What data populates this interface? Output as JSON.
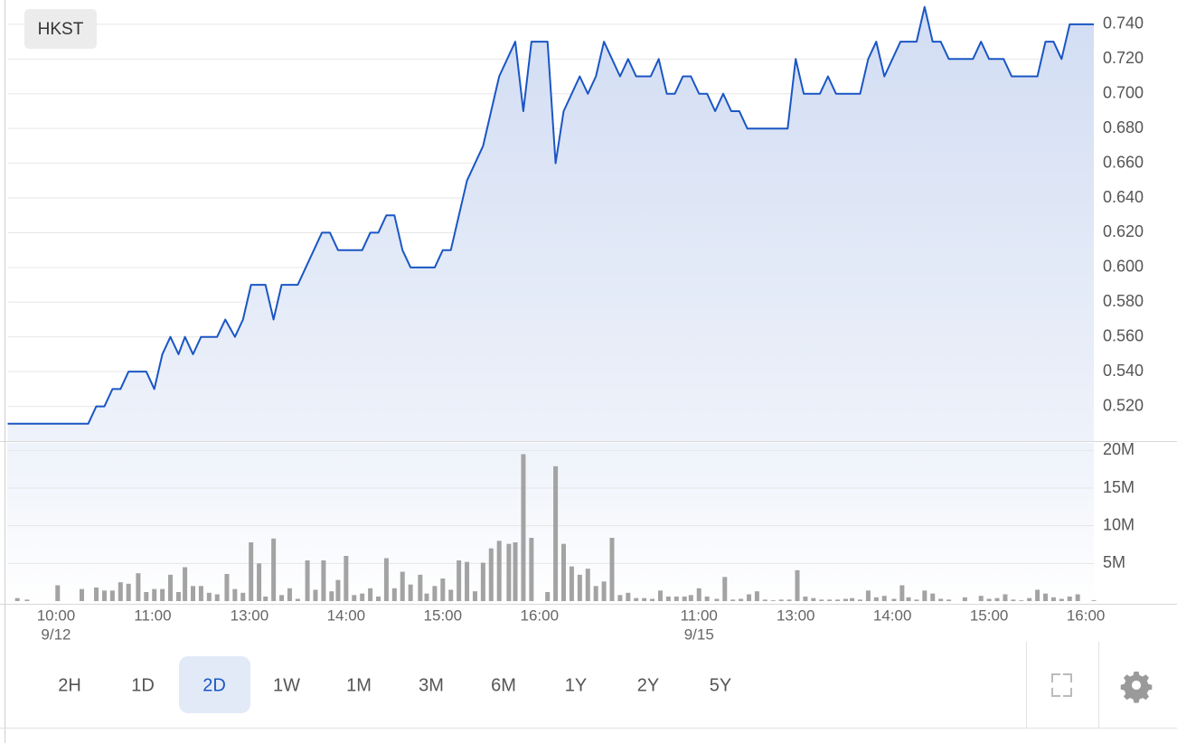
{
  "symbol": "HKST",
  "range_buttons": [
    "2H",
    "1D",
    "2D",
    "1W",
    "1M",
    "3M",
    "6M",
    "1Y",
    "2Y",
    "5Y"
  ],
  "active_range": "2D",
  "chart_data": [
    {
      "type": "line",
      "color": "#1a56c4",
      "grid": true,
      "xlim": [
        0,
        674
      ],
      "ylim": [
        0.5,
        0.754
      ],
      "yticks": [
        {
          "value": 0.52,
          "label": "0.520"
        },
        {
          "value": 0.54,
          "label": "0.540"
        },
        {
          "value": 0.56,
          "label": "0.560"
        },
        {
          "value": 0.58,
          "label": "0.580"
        },
        {
          "value": 0.6,
          "label": "0.600"
        },
        {
          "value": 0.62,
          "label": "0.620"
        },
        {
          "value": 0.64,
          "label": "0.640"
        },
        {
          "value": 0.66,
          "label": "0.660"
        },
        {
          "value": 0.68,
          "label": "0.680"
        },
        {
          "value": 0.7,
          "label": "0.700"
        },
        {
          "value": 0.72,
          "label": "0.720"
        },
        {
          "value": 0.74,
          "label": "0.740"
        }
      ],
      "x": [
        0,
        50,
        55,
        60,
        65,
        70,
        75,
        86,
        91,
        96,
        101,
        106,
        110,
        115,
        120,
        130,
        135,
        141,
        146,
        151,
        160,
        165,
        170,
        180,
        195,
        200,
        205,
        220,
        225,
        230,
        235,
        240,
        245,
        250,
        265,
        270,
        275,
        285,
        295,
        305,
        315,
        320,
        325,
        335,
        340,
        345,
        355,
        360,
        365,
        370,
        380,
        385,
        390,
        399,
        404,
        409,
        414,
        419,
        424,
        429,
        434,
        439,
        444,
        449,
        454,
        459,
        484,
        489,
        494,
        504,
        509,
        514,
        529,
        534,
        539,
        544,
        554,
        564,
        569,
        574,
        579,
        584,
        599,
        604,
        609,
        618,
        623,
        639,
        644,
        649,
        654,
        659,
        674
      ],
      "values": [
        0.51,
        0.51,
        0.52,
        0.52,
        0.53,
        0.53,
        0.54,
        0.54,
        0.53,
        0.55,
        0.56,
        0.55,
        0.56,
        0.55,
        0.56,
        0.56,
        0.57,
        0.56,
        0.57,
        0.59,
        0.59,
        0.57,
        0.59,
        0.59,
        0.62,
        0.62,
        0.61,
        0.61,
        0.62,
        0.62,
        0.63,
        0.63,
        0.61,
        0.6,
        0.6,
        0.61,
        0.61,
        0.65,
        0.67,
        0.71,
        0.73,
        0.69,
        0.73,
        0.73,
        0.66,
        0.69,
        0.71,
        0.7,
        0.71,
        0.73,
        0.71,
        0.72,
        0.71,
        0.71,
        0.72,
        0.7,
        0.7,
        0.71,
        0.71,
        0.7,
        0.7,
        0.69,
        0.7,
        0.69,
        0.69,
        0.68,
        0.68,
        0.72,
        0.7,
        0.7,
        0.71,
        0.7,
        0.7,
        0.72,
        0.73,
        0.71,
        0.73,
        0.73,
        0.75,
        0.73,
        0.73,
        0.72,
        0.72,
        0.73,
        0.72,
        0.72,
        0.71,
        0.71,
        0.73,
        0.73,
        0.72,
        0.74,
        0.74
      ]
    },
    {
      "type": "bar",
      "color": "#a3a3a3",
      "grid": true,
      "xlim": [
        0,
        674
      ],
      "ylim": [
        0,
        21
      ],
      "yticks": [
        {
          "value": 5,
          "label": "5M"
        },
        {
          "value": 10,
          "label": "10M"
        },
        {
          "value": 15,
          "label": "15M"
        },
        {
          "value": 20,
          "label": "20M"
        }
      ],
      "xticks": [
        {
          "value": 30,
          "label": "10:00"
        },
        {
          "value": 90,
          "label": "11:00"
        },
        {
          "value": 150,
          "label": "13:00"
        },
        {
          "value": 210,
          "label": "14:00"
        },
        {
          "value": 270,
          "label": "15:00"
        },
        {
          "value": 330,
          "label": "16:00"
        },
        {
          "value": 429,
          "label": "11:00"
        },
        {
          "value": 489,
          "label": "13:00"
        },
        {
          "value": 549,
          "label": "14:00"
        },
        {
          "value": 609,
          "label": "15:00"
        },
        {
          "value": 669,
          "label": "16:00"
        }
      ],
      "x_date_ticks": [
        {
          "value": 30,
          "label": "9/12"
        },
        {
          "value": 429,
          "label": "9/15"
        }
      ],
      "x": [
        6,
        12,
        31,
        46,
        55,
        60,
        65,
        70,
        75,
        81,
        86,
        91,
        96,
        101,
        106,
        110,
        115,
        120,
        125,
        130,
        136,
        141,
        146,
        151,
        156,
        160,
        165,
        170,
        175,
        180,
        186,
        191,
        196,
        201,
        205,
        210,
        215,
        220,
        225,
        230,
        235,
        240,
        245,
        250,
        256,
        260,
        265,
        270,
        275,
        280,
        285,
        290,
        295,
        300,
        305,
        311,
        315,
        320,
        325,
        335,
        340,
        345,
        350,
        355,
        360,
        365,
        370,
        375,
        380,
        385,
        390,
        395,
        400,
        405,
        410,
        415,
        420,
        424,
        429,
        434,
        440,
        445,
        450,
        455,
        460,
        465,
        470,
        475,
        480,
        485,
        490,
        495,
        500,
        505,
        510,
        515,
        520,
        524,
        529,
        534,
        539,
        544,
        550,
        555,
        559,
        564,
        569,
        574,
        579,
        584,
        594,
        604,
        609,
        614,
        619,
        624,
        629,
        634,
        639,
        644,
        649,
        654,
        659,
        664,
        674
      ],
      "values": [
        0.4,
        0.2,
        2.1,
        1.6,
        1.8,
        1.4,
        1.4,
        2.5,
        2.3,
        3.7,
        1.2,
        1.6,
        1.6,
        3.5,
        1.2,
        4.5,
        2,
        2,
        1.1,
        0.9,
        3.6,
        1.6,
        1.1,
        7.8,
        5,
        0.6,
        8.3,
        0.8,
        1.7,
        0.3,
        5.4,
        1.5,
        5.4,
        1.3,
        2.8,
        6,
        0.8,
        1,
        1.7,
        0.6,
        5.7,
        1.7,
        3.9,
        2.2,
        3.5,
        1,
        2,
        3,
        1.5,
        5.4,
        5.2,
        1.3,
        5.1,
        7,
        8,
        7.6,
        7.8,
        19.5,
        8.4,
        1.2,
        17.9,
        7.6,
        4.6,
        3.5,
        4.3,
        2,
        2.6,
        8.4,
        0.8,
        1.1,
        0.4,
        0.4,
        0.3,
        1.4,
        0.6,
        0.6,
        0.6,
        0.8,
        1.7,
        0.6,
        0.3,
        3.2,
        0.2,
        0.3,
        0.9,
        1.3,
        0.2,
        0.1,
        0.2,
        0.2,
        4.1,
        0.6,
        0.4,
        0.2,
        0.2,
        0.2,
        0.3,
        0.4,
        0.2,
        1.4,
        0.5,
        0.7,
        0.3,
        2.1,
        0.5,
        0.2,
        1.4,
        1,
        0.3,
        0.2,
        0.5,
        0.7,
        0.3,
        0.4,
        0.9,
        0.2,
        0.1,
        0.4,
        1.5,
        1,
        0.5,
        0.3,
        0.6,
        0.9,
        0.1
      ]
    }
  ]
}
